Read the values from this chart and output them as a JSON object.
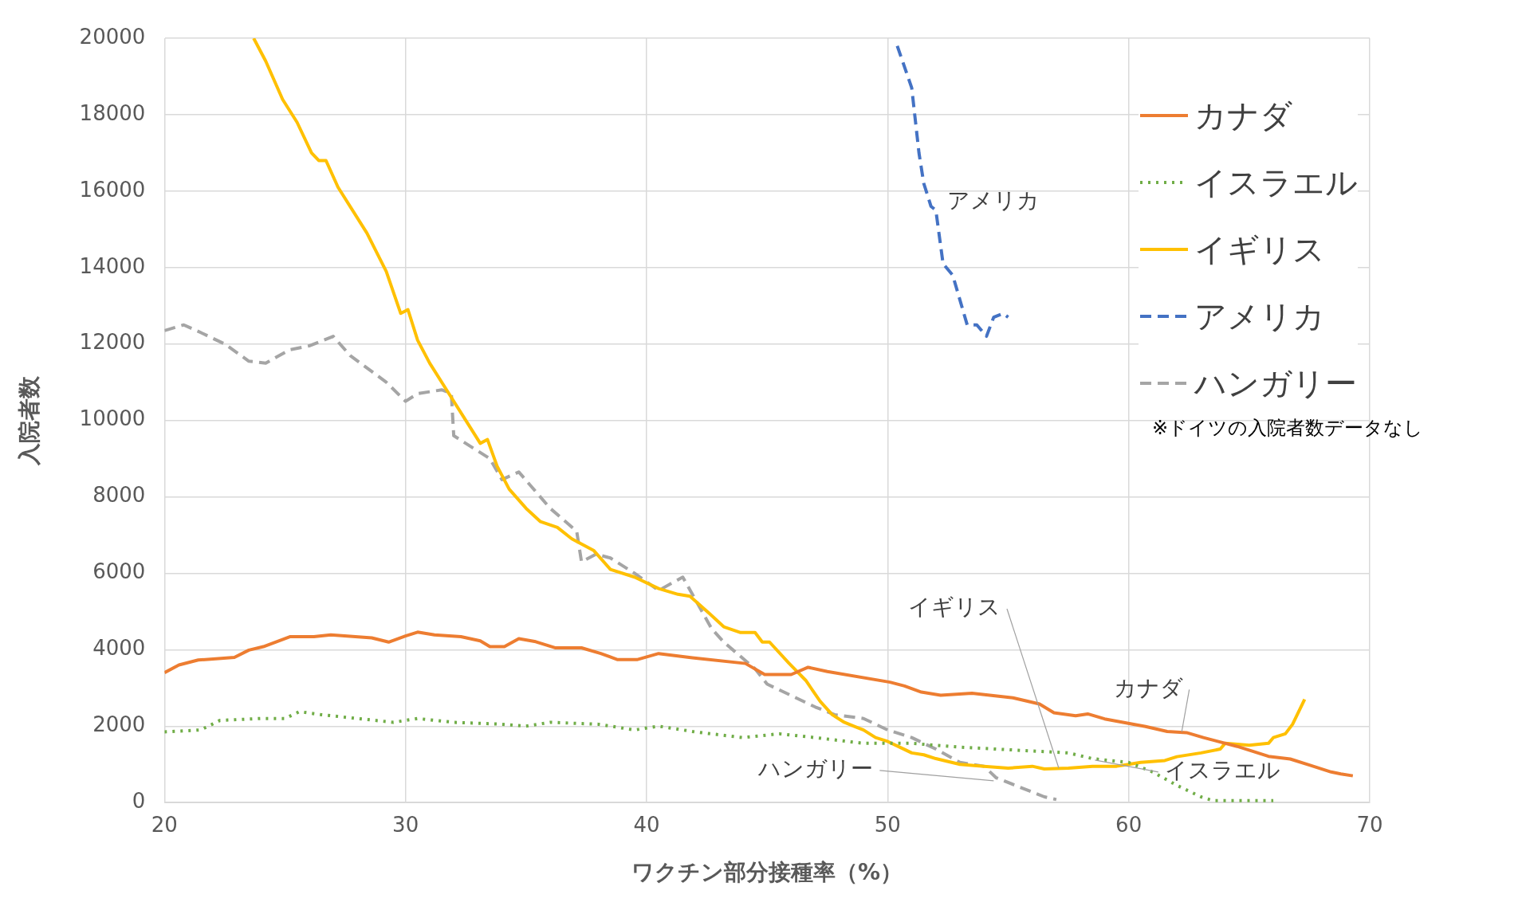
{
  "chart_data": {
    "type": "line",
    "xlabel": "ワクチン部分接種率（%）",
    "ylabel": "入院者数",
    "xlim": [
      20,
      70
    ],
    "xticks": [
      20,
      30,
      40,
      50,
      60,
      70
    ],
    "ylim": [
      0,
      20000
    ],
    "yticks": [
      0,
      2000,
      4000,
      6000,
      8000,
      10000,
      12000,
      14000,
      16000,
      18000,
      20000
    ],
    "grid": true,
    "legend": "top right",
    "marker": "none",
    "series": [
      {
        "name": "カナダ",
        "color": "#ed7d31",
        "line_style": "solid",
        "x": [
          20,
          20.6,
          21.4,
          22.9,
          23.5,
          24.1,
          25.2,
          26.2,
          26.9,
          28.6,
          29.3,
          30,
          30.5,
          31.2,
          32.3,
          33.1,
          33.5,
          34.1,
          34.7,
          35.4,
          36.2,
          37.3,
          38.1,
          38.8,
          39.6,
          40.5,
          41.9,
          44.1,
          44.9,
          46,
          46.7,
          47.5,
          50.1,
          50.7,
          51.4,
          52.2,
          53.5,
          55.2,
          56.3,
          56.9,
          57.8,
          58.3,
          59,
          60.7,
          61.6,
          62.4,
          63.1,
          64.5,
          65.8,
          66.7,
          67.5,
          68.4,
          68.8,
          69.3
        ],
        "values": [
          3400,
          3600,
          3730,
          3800,
          3990,
          4080,
          4340,
          4340,
          4390,
          4310,
          4200,
          4360,
          4460,
          4390,
          4340,
          4230,
          4080,
          4080,
          4290,
          4210,
          4050,
          4050,
          3900,
          3740,
          3740,
          3900,
          3790,
          3640,
          3350,
          3350,
          3540,
          3430,
          3150,
          3050,
          2890,
          2810,
          2860,
          2740,
          2580,
          2350,
          2270,
          2320,
          2190,
          1990,
          1860,
          1830,
          1700,
          1470,
          1210,
          1140,
          980,
          800,
          750,
          700
        ]
      },
      {
        "name": "イスラエル",
        "color": "#70ad47",
        "line_style": "dotted",
        "x": [
          20,
          21.5,
          22.3,
          24,
          25,
          25.6,
          26.5,
          28,
          29.5,
          30.5,
          32,
          34,
          35,
          36,
          38,
          39.5,
          40.5,
          42,
          44,
          45.5,
          47,
          49,
          51,
          53,
          54.5,
          56,
          57.5,
          58.5,
          60,
          61,
          62,
          63,
          63.5,
          66
        ],
        "values": [
          1850,
          1900,
          2150,
          2200,
          2200,
          2380,
          2300,
          2200,
          2100,
          2200,
          2100,
          2050,
          2000,
          2100,
          2050,
          1900,
          2000,
          1850,
          1700,
          1800,
          1700,
          1550,
          1550,
          1450,
          1400,
          1350,
          1300,
          1150,
          1050,
          800,
          450,
          150,
          50,
          50
        ]
      },
      {
        "name": "イギリス",
        "color": "#ffc000",
        "line_style": "solid",
        "x": [
          23.7,
          24.2,
          24.9,
          25.5,
          26.1,
          26.4,
          26.7,
          27.2,
          28.4,
          29.2,
          29.8,
          30.1,
          30.5,
          31,
          31.8,
          32.6,
          33.1,
          33.4,
          33.8,
          34.3,
          35,
          35.6,
          36.3,
          36.9,
          37.8,
          38.5,
          39.5,
          40.5,
          41.3,
          41.8,
          42.6,
          43.2,
          43.9,
          44.5,
          44.8,
          45.1,
          45.9,
          46.6,
          47.2,
          47.7,
          48.2,
          48.6,
          49,
          49.5,
          50,
          50.5,
          51,
          51.5,
          52,
          53,
          54,
          55,
          56,
          56.5,
          57.5,
          58.5,
          59.5,
          60,
          60.5,
          61.5,
          62,
          63,
          63.8,
          64,
          65,
          65.8,
          66,
          66.5,
          66.8,
          67.3
        ],
        "values": [
          20000,
          19400,
          18400,
          17800,
          17000,
          16800,
          16800,
          16100,
          14900,
          13900,
          12800,
          12900,
          12100,
          11500,
          10700,
          9900,
          9400,
          9500,
          8800,
          8200,
          7700,
          7350,
          7200,
          6900,
          6600,
          6100,
          5900,
          5600,
          5450,
          5400,
          4950,
          4600,
          4450,
          4450,
          4200,
          4200,
          3650,
          3200,
          2650,
          2300,
          2100,
          2000,
          1900,
          1700,
          1600,
          1450,
          1300,
          1250,
          1150,
          1000,
          950,
          900,
          950,
          880,
          900,
          950,
          950,
          1000,
          1050,
          1100,
          1200,
          1300,
          1400,
          1550,
          1500,
          1550,
          1700,
          1800,
          2050,
          2700
        ]
      },
      {
        "name": "アメリカ",
        "color": "#4472c4",
        "line_style": "dashed",
        "x": [
          50.4,
          51,
          51.3,
          51.5,
          51.8,
          52,
          52.3,
          52.7,
          53.3,
          53.7,
          54.1,
          54.4,
          54.8,
          55
        ],
        "values": [
          19800,
          18700,
          17000,
          16200,
          15600,
          15500,
          14100,
          13800,
          12500,
          12500,
          12200,
          12700,
          12800,
          12700
        ]
      },
      {
        "name": "ハンガリー",
        "color": "#a5a5a5",
        "line_style": "dashed",
        "x": [
          20,
          20.8,
          21.5,
          22.5,
          23.5,
          24.2,
          25.2,
          26,
          27,
          27.7,
          29.2,
          30,
          30.5,
          31.5,
          31.9,
          32,
          33.5,
          34,
          34.7,
          36,
          37.1,
          37.3,
          37.9,
          38.5,
          39.5,
          40.5,
          41.5,
          42.7,
          43.2,
          44.5,
          45,
          46,
          47,
          47.8,
          49,
          50,
          51,
          52,
          53,
          54,
          54.5,
          55.5,
          56.5,
          57
        ],
        "values": [
          12350,
          12500,
          12300,
          12000,
          11550,
          11500,
          11850,
          11950,
          12200,
          11700,
          11000,
          10500,
          10700,
          10800,
          10700,
          9600,
          9000,
          8450,
          8650,
          7700,
          7100,
          6300,
          6500,
          6400,
          6000,
          5550,
          5900,
          4550,
          4200,
          3500,
          3100,
          2800,
          2500,
          2300,
          2200,
          1900,
          1700,
          1400,
          1050,
          950,
          650,
          400,
          150,
          80
        ]
      }
    ],
    "annotations": [
      {
        "text": "アメリカ",
        "x": 52.2,
        "y": 15500
      },
      {
        "text": "イギリス",
        "x": 57.1,
        "y": 900
      },
      {
        "text": "カナダ",
        "x": 62.2,
        "y": 1850
      },
      {
        "text": "イスラエル",
        "x": 58.6,
        "y": 1110
      },
      {
        "text": "ハンガリー",
        "x": 54.4,
        "y": 570
      },
      "※ドイツの入院者数データなし"
    ]
  }
}
